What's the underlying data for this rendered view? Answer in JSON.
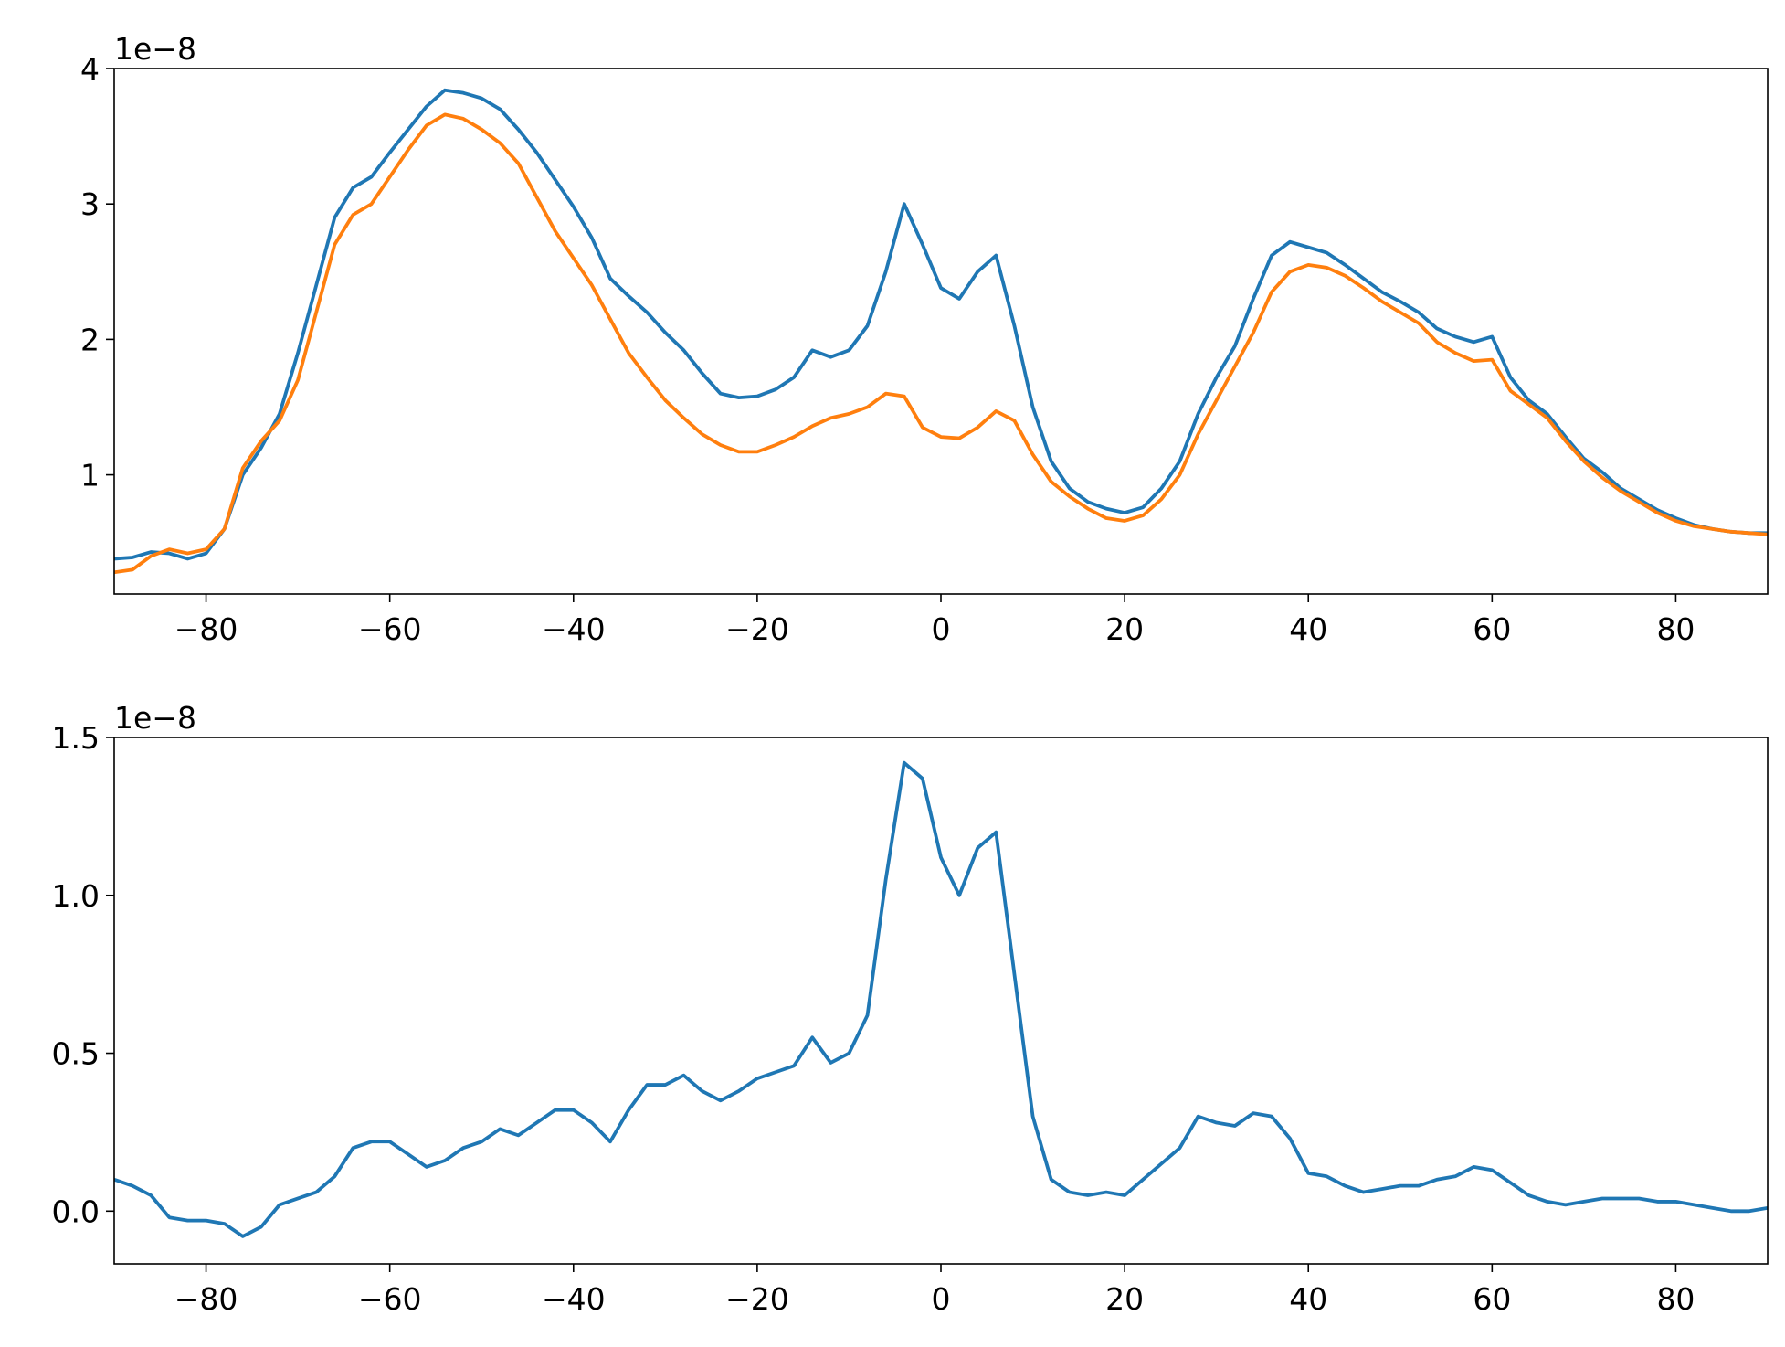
{
  "chart_data": [
    {
      "type": "line",
      "y_multiplier": "1e−8",
      "x": [
        -90,
        -88,
        -86,
        -84,
        -82,
        -80,
        -78,
        -76,
        -74,
        -72,
        -70,
        -68,
        -66,
        -64,
        -62,
        -60,
        -58,
        -56,
        -54,
        -52,
        -50,
        -48,
        -46,
        -44,
        -42,
        -40,
        -38,
        -36,
        -34,
        -32,
        -30,
        -28,
        -26,
        -24,
        -22,
        -20,
        -18,
        -16,
        -14,
        -12,
        -10,
        -8,
        -6,
        -4,
        -2,
        0,
        2,
        4,
        6,
        8,
        10,
        12,
        14,
        16,
        18,
        20,
        22,
        24,
        26,
        28,
        30,
        32,
        34,
        36,
        38,
        40,
        42,
        44,
        46,
        48,
        50,
        52,
        54,
        56,
        58,
        60,
        62,
        64,
        66,
        68,
        70,
        72,
        74,
        76,
        78,
        80,
        82,
        84,
        86,
        88,
        90
      ],
      "series": [
        {
          "color": "#1f77b4",
          "values": [
            0.38,
            0.39,
            0.43,
            0.42,
            0.38,
            0.42,
            0.6,
            1.0,
            1.2,
            1.45,
            1.9,
            2.4,
            2.9,
            3.12,
            3.2,
            3.38,
            3.55,
            3.72,
            3.84,
            3.82,
            3.78,
            3.7,
            3.55,
            3.38,
            3.18,
            2.98,
            2.75,
            2.45,
            2.32,
            2.2,
            2.05,
            1.92,
            1.75,
            1.6,
            1.57,
            1.58,
            1.63,
            1.72,
            1.92,
            1.87,
            1.92,
            2.1,
            2.5,
            3.0,
            2.7,
            2.38,
            2.3,
            2.5,
            2.62,
            2.1,
            1.5,
            1.1,
            0.9,
            0.8,
            0.75,
            0.72,
            0.76,
            0.9,
            1.1,
            1.45,
            1.72,
            1.95,
            2.3,
            2.62,
            2.72,
            2.68,
            2.64,
            2.55,
            2.45,
            2.35,
            2.28,
            2.2,
            2.08,
            2.02,
            1.98,
            2.02,
            1.72,
            1.55,
            1.45,
            1.28,
            1.12,
            1.02,
            0.9,
            0.82,
            0.74,
            0.68,
            0.63,
            0.6,
            0.58,
            0.57,
            0.57
          ]
        },
        {
          "color": "#ff7f0e",
          "values": [
            0.28,
            0.3,
            0.4,
            0.45,
            0.42,
            0.45,
            0.6,
            1.05,
            1.25,
            1.4,
            1.7,
            2.2,
            2.7,
            2.92,
            3.0,
            3.2,
            3.4,
            3.58,
            3.66,
            3.63,
            3.55,
            3.45,
            3.3,
            3.05,
            2.8,
            2.6,
            2.4,
            2.15,
            1.9,
            1.72,
            1.55,
            1.42,
            1.3,
            1.22,
            1.17,
            1.17,
            1.22,
            1.28,
            1.36,
            1.42,
            1.45,
            1.5,
            1.6,
            1.58,
            1.35,
            1.28,
            1.27,
            1.35,
            1.47,
            1.4,
            1.15,
            0.95,
            0.84,
            0.75,
            0.68,
            0.66,
            0.7,
            0.82,
            1.0,
            1.3,
            1.55,
            1.8,
            2.05,
            2.35,
            2.5,
            2.55,
            2.53,
            2.47,
            2.38,
            2.28,
            2.2,
            2.12,
            1.98,
            1.9,
            1.84,
            1.85,
            1.62,
            1.52,
            1.42,
            1.25,
            1.1,
            0.98,
            0.88,
            0.8,
            0.72,
            0.66,
            0.62,
            0.6,
            0.58,
            0.57,
            0.56
          ]
        }
      ],
      "xlim": [
        -90,
        90
      ],
      "ylim": [
        0.12,
        4
      ],
      "xticks": [
        {
          "value": -80,
          "label": "−80"
        },
        {
          "value": -60,
          "label": "−60"
        },
        {
          "value": -40,
          "label": "−40"
        },
        {
          "value": -20,
          "label": "−20"
        },
        0,
        20,
        40,
        60,
        80
      ],
      "yticks": [
        1,
        2,
        3,
        4
      ]
    },
    {
      "type": "line",
      "y_multiplier": "1e−8",
      "x": [
        -90,
        -88,
        -86,
        -84,
        -82,
        -80,
        -78,
        -76,
        -74,
        -72,
        -70,
        -68,
        -66,
        -64,
        -62,
        -60,
        -58,
        -56,
        -54,
        -52,
        -50,
        -48,
        -46,
        -44,
        -42,
        -40,
        -38,
        -36,
        -34,
        -32,
        -30,
        -28,
        -26,
        -24,
        -22,
        -20,
        -18,
        -16,
        -14,
        -12,
        -10,
        -8,
        -6,
        -4,
        -2,
        0,
        2,
        4,
        6,
        8,
        10,
        12,
        14,
        16,
        18,
        20,
        22,
        24,
        26,
        28,
        30,
        32,
        34,
        36,
        38,
        40,
        42,
        44,
        46,
        48,
        50,
        52,
        54,
        56,
        58,
        60,
        62,
        64,
        66,
        68,
        70,
        72,
        74,
        76,
        78,
        80,
        82,
        84,
        86,
        88,
        90
      ],
      "series": [
        {
          "color": "#1f77b4",
          "values": [
            0.1,
            0.08,
            0.05,
            -0.02,
            -0.03,
            -0.03,
            -0.04,
            -0.08,
            -0.05,
            0.02,
            0.04,
            0.06,
            0.11,
            0.2,
            0.22,
            0.22,
            0.18,
            0.14,
            0.16,
            0.2,
            0.22,
            0.26,
            0.24,
            0.28,
            0.32,
            0.32,
            0.28,
            0.22,
            0.32,
            0.4,
            0.4,
            0.43,
            0.38,
            0.35,
            0.38,
            0.42,
            0.44,
            0.46,
            0.55,
            0.47,
            0.5,
            0.62,
            1.05,
            1.42,
            1.37,
            1.12,
            1.0,
            1.15,
            1.2,
            0.75,
            0.3,
            0.1,
            0.06,
            0.05,
            0.06,
            0.05,
            0.1,
            0.15,
            0.2,
            0.3,
            0.28,
            0.27,
            0.31,
            0.3,
            0.23,
            0.12,
            0.11,
            0.08,
            0.06,
            0.07,
            0.08,
            0.08,
            0.1,
            0.11,
            0.14,
            0.13,
            0.09,
            0.05,
            0.03,
            0.02,
            0.03,
            0.04,
            0.04,
            0.04,
            0.03,
            0.03,
            0.02,
            0.01,
            0.0,
            0.0,
            0.01
          ]
        }
      ],
      "xlim": [
        -90,
        90
      ],
      "ylim": [
        -0.167,
        1.5
      ],
      "xticks": [
        {
          "value": -80,
          "label": "−80"
        },
        {
          "value": -60,
          "label": "−60"
        },
        {
          "value": -40,
          "label": "−40"
        },
        {
          "value": -20,
          "label": "−20"
        },
        0,
        20,
        40,
        60,
        80
      ],
      "yticks": [
        {
          "value": 0,
          "label": "0.0"
        },
        0.5,
        {
          "value": 1,
          "label": "1.0"
        },
        1.5
      ]
    }
  ]
}
